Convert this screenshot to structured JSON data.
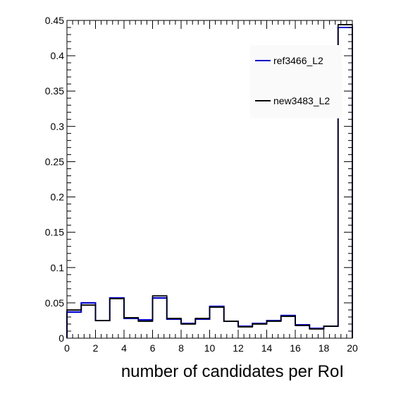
{
  "chart_data": {
    "type": "line",
    "style": "step-histogram",
    "title": "",
    "xlabel": "number of candidates per RoI",
    "ylabel": "",
    "xlim": [
      0,
      20
    ],
    "ylim": [
      0,
      0.45
    ],
    "bin_edges": [
      0,
      1,
      2,
      3,
      4,
      5,
      6,
      7,
      8,
      9,
      10,
      11,
      12,
      13,
      14,
      15,
      16,
      17,
      18,
      19,
      20
    ],
    "x_ticks": [
      "0",
      "2",
      "4",
      "6",
      "8",
      "10",
      "12",
      "14",
      "16",
      "18",
      "20"
    ],
    "y_ticks": [
      "0",
      "0.05",
      "0.1",
      "0.15",
      "0.2",
      "0.25",
      "0.3",
      "0.35",
      "0.4",
      "0.45"
    ],
    "grid": false,
    "legend_position": "top-right",
    "series": [
      {
        "name": "ref3466_L2",
        "color": "#0000cc",
        "values": [
          0.037,
          0.05,
          0.025,
          0.057,
          0.028,
          0.026,
          0.057,
          0.027,
          0.021,
          0.027,
          0.045,
          0.024,
          0.017,
          0.021,
          0.025,
          0.032,
          0.019,
          0.014,
          0.017,
          0.44
        ]
      },
      {
        "name": "new3483_L2",
        "color": "#000000",
        "values": [
          0.04,
          0.047,
          0.025,
          0.056,
          0.029,
          0.024,
          0.06,
          0.028,
          0.02,
          0.028,
          0.044,
          0.024,
          0.016,
          0.02,
          0.024,
          0.031,
          0.018,
          0.013,
          0.017,
          0.444
        ]
      }
    ]
  }
}
